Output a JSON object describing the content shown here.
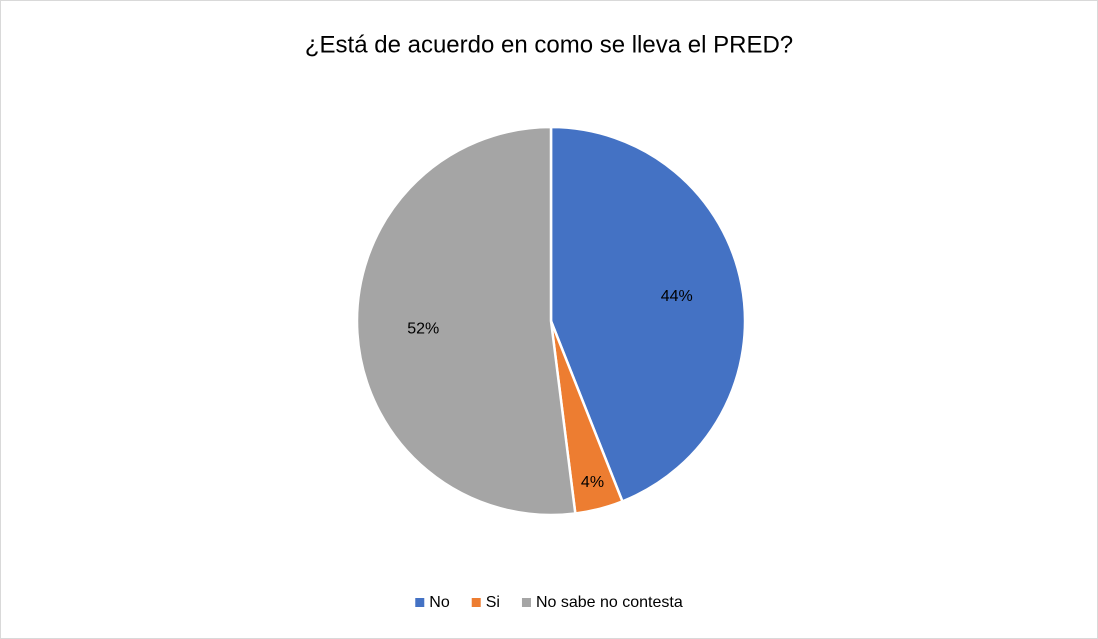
{
  "chart_data": {
    "type": "pie",
    "title": "¿Está de acuerdo en como se lleva el PRED?",
    "categories": [
      "No",
      "Si",
      "No sabe no contesta"
    ],
    "values": [
      44,
      4,
      52
    ],
    "value_labels": [
      "44%",
      "4%",
      "52%"
    ],
    "colors": [
      "#4472c4",
      "#ed7d31",
      "#a5a5a5"
    ],
    "legend": "bottom"
  }
}
